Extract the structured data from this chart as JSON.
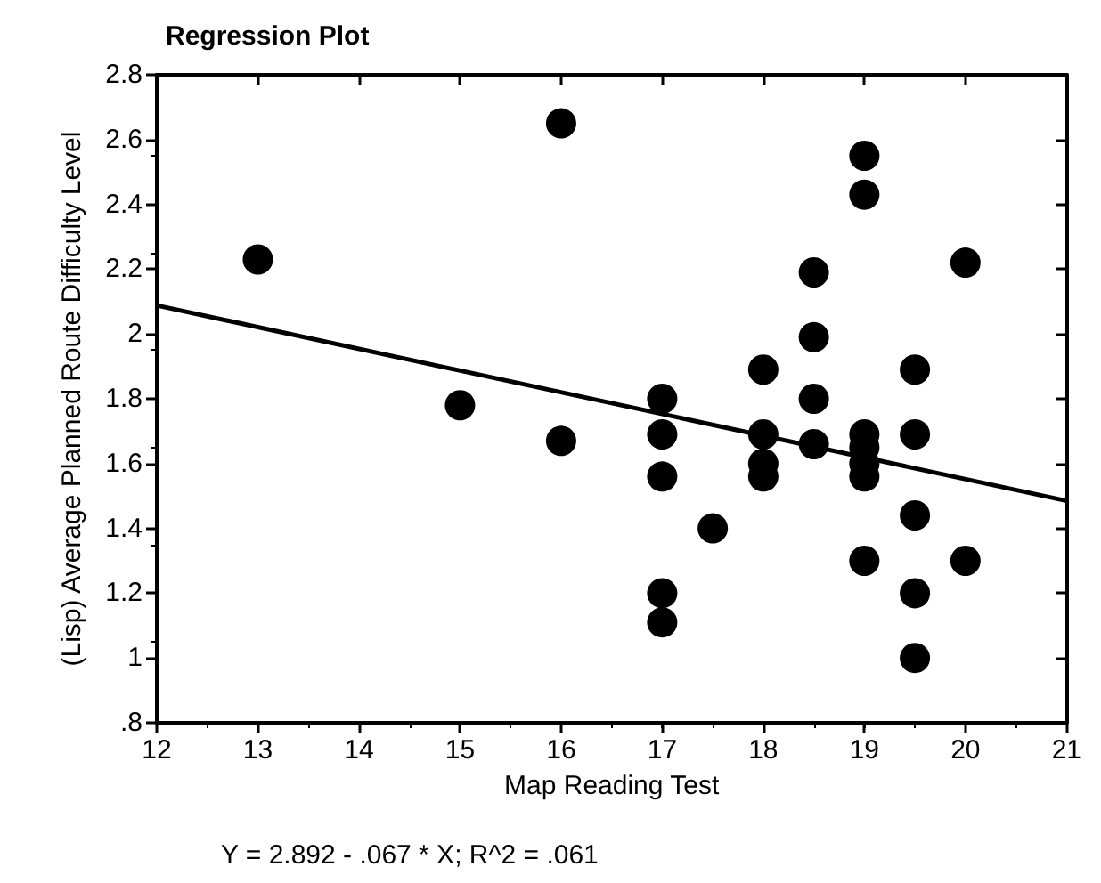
{
  "chart_data": {
    "type": "scatter",
    "title": "Regression Plot",
    "xlabel": "Map Reading Test",
    "ylabel": "(Lisp) Average Planned Route Difficulty Level",
    "xlim": [
      12,
      21
    ],
    "xticks": [
      12,
      13,
      14,
      15,
      16,
      17,
      18,
      19,
      20,
      21
    ],
    "ylim": [
      0.8,
      2.8
    ],
    "yticks": [
      {
        "value": 0.8,
        "label": ".8"
      },
      1,
      1.2,
      1.4,
      1.6,
      1.8,
      2,
      2.2,
      2.4,
      2.6,
      2.8
    ],
    "grid": false,
    "series": [
      {
        "marker": "circle",
        "color": "#000000",
        "x": [
          13,
          15,
          16,
          16,
          17,
          17,
          17,
          17,
          17,
          17.5,
          18,
          18,
          18,
          18,
          18.5,
          18.5,
          18.5,
          18.5,
          19,
          19,
          19,
          19,
          19,
          19,
          19,
          19.5,
          19.5,
          19.5,
          19.5,
          19.5,
          20,
          20
        ],
        "values": [
          2.23,
          1.78,
          2.65,
          1.67,
          1.8,
          1.69,
          1.56,
          1.2,
          1.11,
          1.4,
          1.89,
          1.69,
          1.6,
          1.56,
          2.19,
          1.99,
          1.8,
          1.66,
          2.55,
          2.43,
          1.69,
          1.65,
          1.6,
          1.56,
          1.3,
          1.89,
          1.69,
          1.44,
          1.2,
          1.0,
          2.22,
          1.3
        ]
      },
      {
        "type": "line",
        "marker": "none",
        "color": "#000000",
        "x": [
          12,
          21
        ],
        "values": [
          2.088,
          1.485
        ]
      }
    ],
    "annotations": [
      "Y = 2.892 - .067 * X; R^2 = .061"
    ]
  }
}
